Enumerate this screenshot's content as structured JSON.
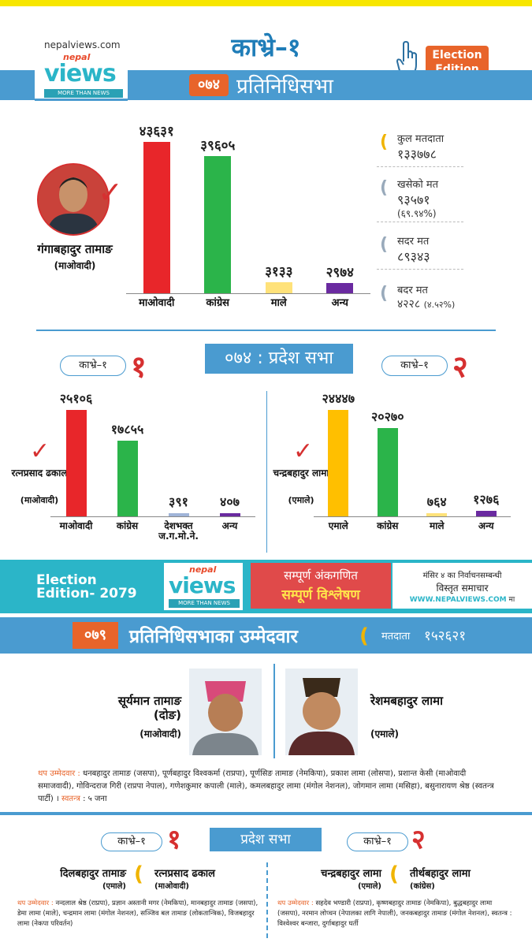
{
  "site_url": "nepalviews.com",
  "logo": {
    "nepal": "nepal",
    "views": "views",
    "tagline": "MORE THAN NEWS"
  },
  "title": "काभ्रे–१",
  "edition_badge": "Election Edition",
  "hs_2074": {
    "year": "०७४",
    "label": "प्रतिनिधिसभा",
    "winner_name": "गंगाबहादुर तामाङ",
    "winner_party": "(माओवादी)",
    "bars": [
      {
        "party": "माओवादी",
        "value_label": "४३६३१",
        "value": 43631,
        "color": "#e8262a"
      },
      {
        "party": "कांग्रेस",
        "value_label": "३९६०५",
        "value": 39605,
        "color": "#2bb44a"
      },
      {
        "party": "माले",
        "value_label": "३१३३",
        "value": 3133,
        "color": "#ffe27a"
      },
      {
        "party": "अन्य",
        "value_label": "२९७४",
        "value": 2974,
        "color": "#6a2aa0"
      }
    ],
    "stats": [
      {
        "label": "कुल मतदाता",
        "value": "१३३७७८",
        "note": ""
      },
      {
        "label": "खसेको मत",
        "value": "९३५७१",
        "note": "(६९.९४%)"
      },
      {
        "label": "सदर मत",
        "value": "८९३४३",
        "note": ""
      },
      {
        "label": "बदर मत",
        "value": "४२२८",
        "note": "(४.५२%)"
      }
    ]
  },
  "pa_2074": {
    "band": "०७४ : प्रदेश सभा",
    "left": {
      "pill": "काभ्रे–१",
      "num": "१",
      "winner_name": "रत्नप्रसाद ढकाल",
      "winner_party": "(माओवादी)",
      "bars": [
        {
          "party": "माओवादी",
          "value_label": "२५१०६",
          "value": 25106,
          "color": "#e8262a"
        },
        {
          "party": "कांग्रेस",
          "value_label": "१७८५५",
          "value": 17855,
          "color": "#2bb44a"
        },
        {
          "party": "देशभक्त ज.ग.मो.ने.",
          "value_label": "३९१",
          "value": 391,
          "color": "#a0b4d8"
        },
        {
          "party": "अन्य",
          "value_label": "४०७",
          "value": 407,
          "color": "#6a2aa0"
        }
      ]
    },
    "right": {
      "pill": "काभ्रे–१",
      "num": "२",
      "winner_name": "चन्द्रबहादुर लामा",
      "winner_party": "(एमाले)",
      "bars": [
        {
          "party": "एमाले",
          "value_label": "२४४४७",
          "value": 24447,
          "color": "#ffbf00"
        },
        {
          "party": "कांग्रेस",
          "value_label": "२०२७०",
          "value": 20270,
          "color": "#2bb44a"
        },
        {
          "party": "माले",
          "value_label": "७६४",
          "value": 764,
          "color": "#ffe27a"
        },
        {
          "party": "अन्य",
          "value_label": "१२७६",
          "value": 1276,
          "color": "#6a2aa0"
        }
      ]
    }
  },
  "banner": {
    "ee_line1": "Election",
    "ee_line2": "Edition- 2079",
    "red_line1": "सम्पूर्ण अंकगणित",
    "red_line2": "सम्पूर्ण विश्लेषण",
    "right_line1": "मंसिर ४ का निर्वाचनसम्बन्धी",
    "right_line2": "विस्तृत समाचार",
    "right_url": "WWW.NEPALVIEWS.COM",
    "right_suffix": "मा"
  },
  "hs_2079": {
    "year": "०७९",
    "label": "प्रतिनिधिसभाका उम्मेदवार",
    "voters_label": "मतदाता",
    "voters_value": "१५२६२१",
    "cand1_name": "सूर्यमान तामाङ (दोङ)",
    "cand1_party": "(माओवादी)",
    "cand2_name": "रेशमबहादुर लामा",
    "cand2_party": "(एमाले)",
    "additional_label": "थप उम्मेदवार :",
    "additional_text": "धनबहादुर तामाङ (जसपा), पूर्णबहादुर विश्वकर्मा (राप्रपा), पूर्णसिङ तामाङ (नेमकिपा), प्रकाश लामा (लोसपा), प्रशान्त केसी (माओवादी समाजवादी), गोविन्दराज गिरी (राप्रपा नेपाल), गणेशकुमार कपाली (माले), कमलबहादुर लामा (मंगोल नेशनल), जोगमान लामा (मसिहा), बसुनारायण श्रेष्ठ (स्वतन्त्र पार्टी) ।",
    "independent_label": "स्वतन्त्र",
    "independent_value": ": ५ जना"
  },
  "pa_2079": {
    "band": "प्रदेश सभा",
    "left": {
      "pill": "काभ्रे–१",
      "num": "१",
      "cand1_name": "दिलबहादुर तामाङ",
      "cand1_party": "(एमाले)",
      "cand2_name": "रत्नप्रसाद ढकाल",
      "cand2_party": "(माओवादी)",
      "additional_label": "थप उम्मेदवार :",
      "additional_text": "नन्दलाल श्रेष्ठ (राप्रपा), प्रज्ञान अस्तानी मगर (नेमकिपा), मानबहादुर तामाङ (जसपा), डेमा लामा (माले), चन्द्रमान लामा (मंगोल नेशनल), सञ्जिव बल तामाङ (लोकतान्त्रिक), विजबहादुर लामा (नेकपा परिवर्तन)"
    },
    "right": {
      "pill": "काभ्रे–१",
      "num": "२",
      "cand1_name": "चन्द्रबहादुर लामा",
      "cand1_party": "(एमाले)",
      "cand2_name": "तीर्थबहादुर लामा",
      "cand2_party": "(कांग्रेस)",
      "additional_label": "थप उम्मेदवार :",
      "additional_text": "सहदेव भण्डारी (राप्रपा), कृष्णबहादुर तामाङ (नेमकिपा), बुद्धबहादुर लामा (जसपा), नरमान लोप्चन (नेपालका लागि नेपाली), जनकबहादुर तामाङ (मंगोल नेशनल), स्वतन्त्र : विश्वेश्वर बन्जारा, दुर्गाबहादुर घर्ती"
    }
  }
}
